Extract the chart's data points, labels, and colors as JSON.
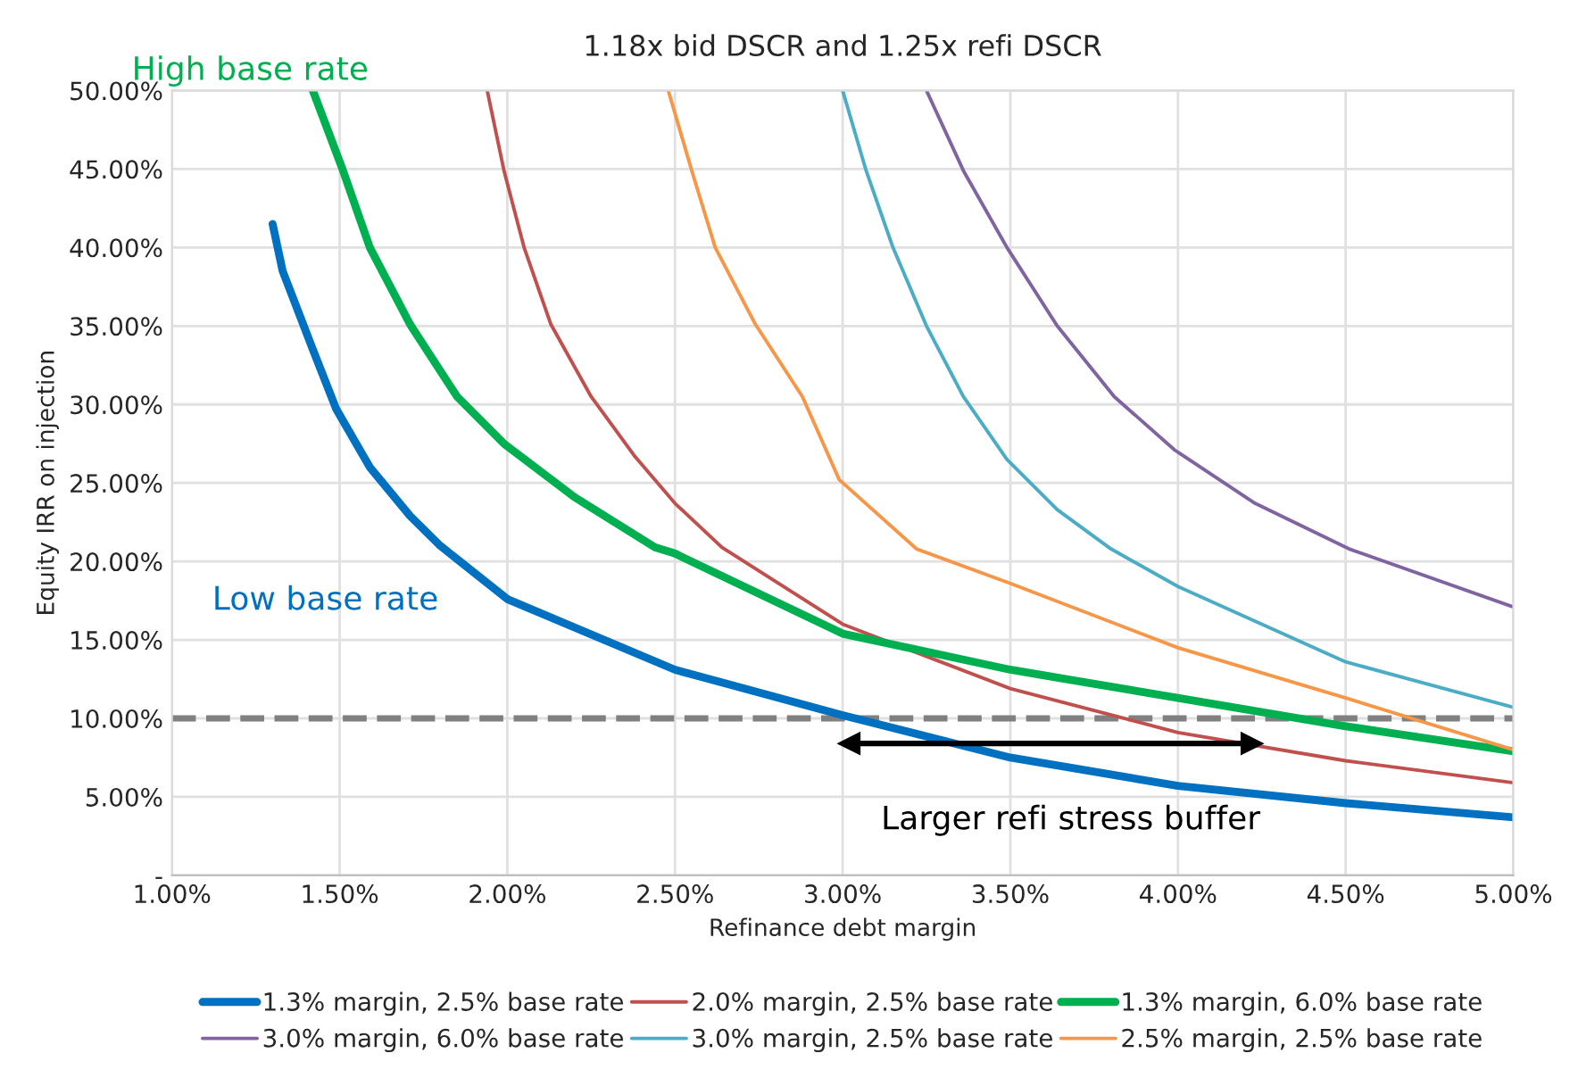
{
  "chart_data": {
    "type": "line",
    "title": "1.18x bid DSCR and 1.25x refi DSCR",
    "xlabel": "Refinance debt margin",
    "ylabel": "Equity IRR on injection",
    "xlim": [
      1,
      5
    ],
    "xticks": [
      {
        "value": 1,
        "label": "1.00%"
      },
      {
        "value": 1.5,
        "label": "1.50%"
      },
      {
        "value": 2,
        "label": "2.00%"
      },
      {
        "value": 2.5,
        "label": "2.50%"
      },
      {
        "value": 3,
        "label": "3.00%"
      },
      {
        "value": 3.5,
        "label": "3.50%"
      },
      {
        "value": 4,
        "label": "4.00%"
      },
      {
        "value": 4.5,
        "label": "4.50%"
      },
      {
        "value": 5,
        "label": "5.00%"
      }
    ],
    "ylim": [
      0,
      50
    ],
    "yticks": [
      {
        "value": 0,
        "label": "-"
      },
      {
        "value": 5,
        "label": "5.00%"
      },
      {
        "value": 10,
        "label": "10.00%"
      },
      {
        "value": 15,
        "label": "15.00%"
      },
      {
        "value": 20,
        "label": "20.00%"
      },
      {
        "value": 25,
        "label": "25.00%"
      },
      {
        "value": 30,
        "label": "30.00%"
      },
      {
        "value": 35,
        "label": "35.00%"
      },
      {
        "value": 40,
        "label": "40.00%"
      },
      {
        "value": 45,
        "label": "45.00%"
      },
      {
        "value": 50,
        "label": "50.00%"
      }
    ],
    "grid": true,
    "legend": "bottom",
    "line_style": "solid",
    "series": [
      {
        "name": "1.3% margin, 2.5% base rate",
        "color": "#0070c0",
        "x": [
          1.3,
          1.33,
          1.42,
          1.49,
          1.59,
          1.71,
          1.8,
          2.0,
          2.5,
          3.0,
          3.5,
          4.0,
          4.5,
          5.0
        ],
        "values": [
          41.5,
          38.5,
          33.5,
          29.7,
          26.0,
          22.9,
          21.0,
          17.6,
          13.1,
          10.2,
          7.5,
          5.7,
          4.6,
          3.7
        ]
      },
      {
        "name": "2.0% margin, 2.5% base rate",
        "color": "#c0504d",
        "x": [
          1.94,
          1.99,
          2.05,
          2.13,
          2.25,
          2.38,
          2.5,
          2.64,
          3.0,
          3.5,
          4.0,
          4.5,
          5.0
        ],
        "values": [
          50,
          44.9,
          40,
          35.1,
          30.5,
          26.7,
          23.7,
          20.9,
          16.0,
          11.9,
          9.1,
          7.3,
          5.9
        ]
      },
      {
        "name": "1.3% margin, 6.0% base rate",
        "color": "#00b050",
        "x": [
          1.42,
          1.51,
          1.59,
          1.71,
          1.85,
          1.99,
          2.2,
          2.44,
          2.5,
          3.0,
          3.5,
          4.0,
          4.5,
          5.0
        ],
        "values": [
          50,
          44.9,
          40,
          35.1,
          30.5,
          27.5,
          24.1,
          20.9,
          20.5,
          15.4,
          13.1,
          11.3,
          9.5,
          7.9
        ]
      },
      {
        "name": "3.0% margin, 6.0% base rate",
        "color": "#8064a2",
        "x": [
          3.25,
          3.36,
          3.49,
          3.64,
          3.81,
          3.99,
          4.23,
          4.51,
          5.0
        ],
        "values": [
          50,
          44.9,
          40,
          35.0,
          30.5,
          27.1,
          23.7,
          20.8,
          17.1
        ]
      },
      {
        "name": "3.0% margin, 2.5% base rate",
        "color": "#4bacc6",
        "x": [
          3.0,
          3.07,
          3.15,
          3.25,
          3.36,
          3.49,
          3.64,
          3.8,
          4.0,
          4.5,
          5.0
        ],
        "values": [
          50,
          44.9,
          40,
          35.0,
          30.5,
          26.5,
          23.3,
          20.8,
          18.4,
          13.6,
          10.7
        ]
      },
      {
        "name": "2.5% margin, 2.5% base rate",
        "color": "#f79646",
        "x": [
          2.48,
          2.55,
          2.62,
          2.74,
          2.88,
          2.99,
          3.22,
          3.5,
          4.0,
          4.5,
          5.0
        ],
        "values": [
          50,
          44.9,
          40,
          35.1,
          30.5,
          25.2,
          20.8,
          18.6,
          14.5,
          11.3,
          8.0
        ]
      },
      {
        "color": "#000000",
        "marker": "triangle",
        "x": [
          3.02,
          4.22
        ],
        "values": [
          8.4,
          8.4
        ]
      }
    ],
    "ref_lines": [
      {
        "axis": "y",
        "value": 10,
        "color": "#808080",
        "line_style": "dashed"
      }
    ],
    "annotations": [
      "High base rate",
      "Low base rate",
      "Larger refi stress buffer"
    ]
  }
}
